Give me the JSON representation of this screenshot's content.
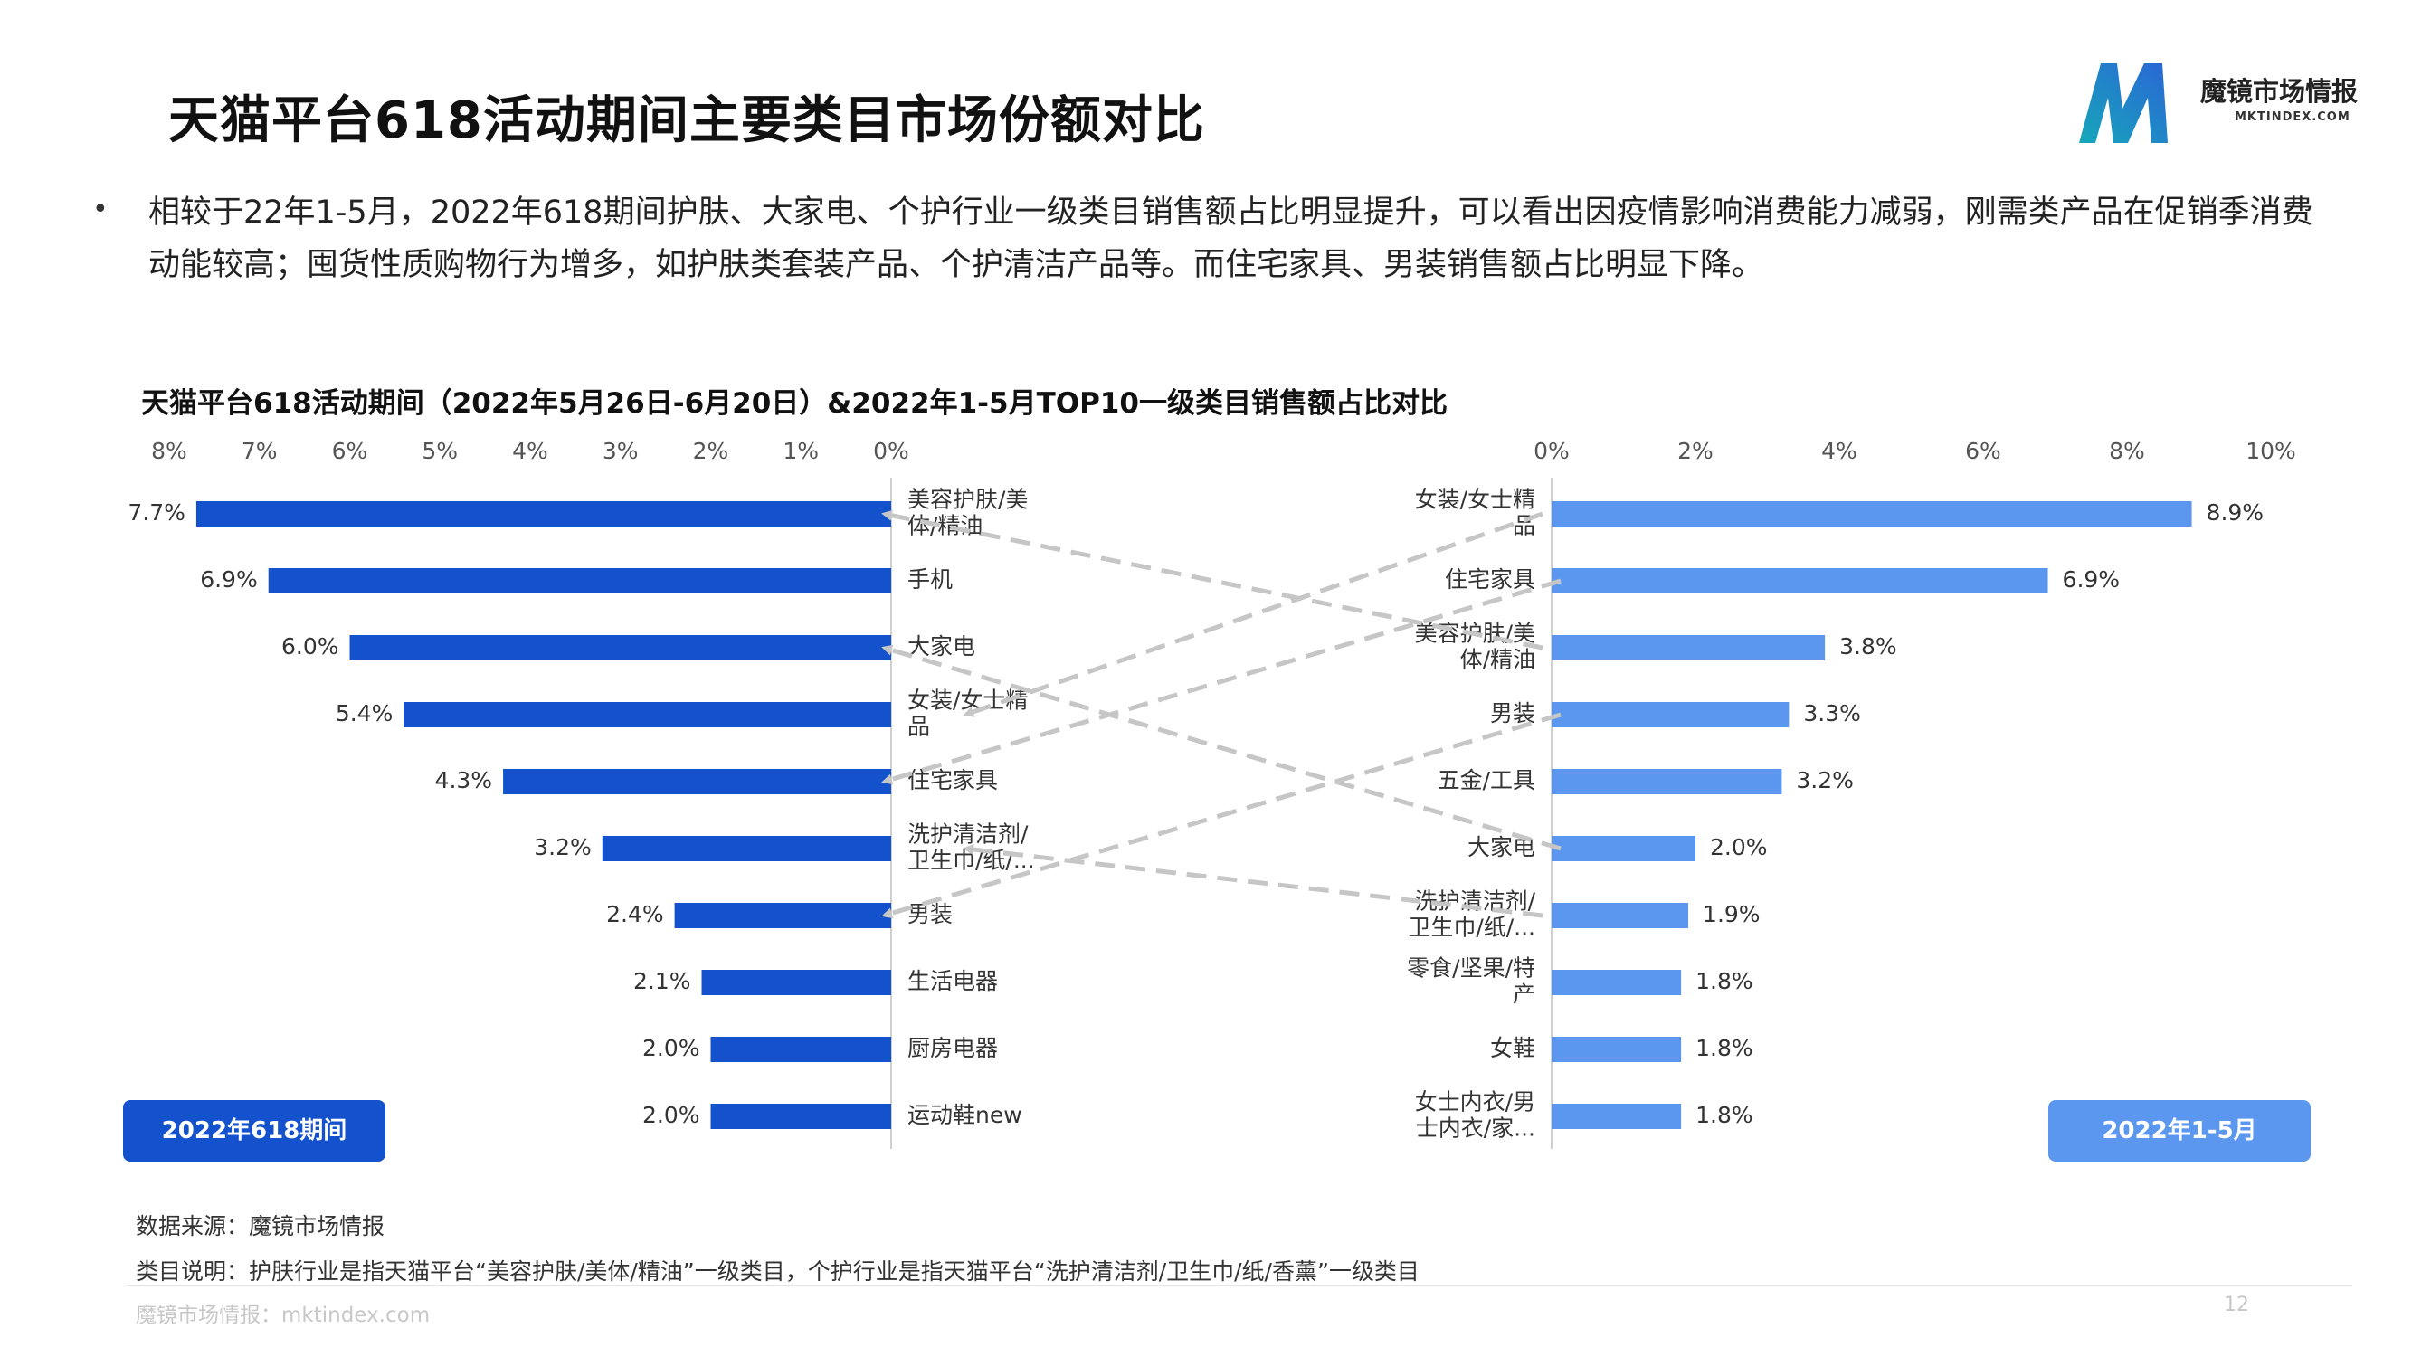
{
  "page": {
    "title": "天猫平台618活动期间主要类目市场份额对比",
    "bullet": "相较于22年1-5月，2022年618期间护肤、大家电、个护行业一级类目销售额占比明显提升，可以看出因疫情影响消费能力减弱，刚需类产品在促销季消费动能较高；囤货性质购物行为增多，如护肤类套装产品、个护清洁产品等。而住宅家具、男装销售额占比明显下降。",
    "bullet_marker": "•",
    "logo_name": "魔镜市场情报",
    "logo_sub": "MKTINDEX.COM",
    "legend_left": "2022年618期间",
    "legend_right": "2022年1-5月",
    "note_source": "数据来源：魔镜市场情报",
    "note_category": "类目说明：护肤行业是指天猫平台“美容护肤/美体/精油”一级类目，个护行业是指天猫平台“洗护清洁剂/卫生巾/纸/香薰”一级类目",
    "footer_source": "魔镜市场情报：mktindex.com",
    "page_number": "12"
  },
  "colors": {
    "left_bar": "#1451cc",
    "right_bar": "#5b97ee",
    "arrow": "#c6c6c6",
    "legend_left_bg": "#1451cc",
    "legend_right_bg": "#5b97ee"
  },
  "chart_data": {
    "type": "bar",
    "title": "天猫平台618活动期间（2022年5月26日-6月20日）&2022年1-5月TOP10一级类目销售额占比对比",
    "left": {
      "name": "2022年618期间",
      "orientation": "horizontal-reversed",
      "categories": [
        "美容护肤/美\n体/精油",
        "手机",
        "大家电",
        "女装/女士精\n品",
        "住宅家具",
        "洗护清洁剂/\n卫生巾/纸/...",
        "男装",
        "生活电器",
        "厨房电器",
        "运动鞋new"
      ],
      "values": [
        7.7,
        6.9,
        6.0,
        5.4,
        4.3,
        3.2,
        2.4,
        2.1,
        2.0,
        2.0
      ],
      "labels": [
        "7.7%",
        "6.9%",
        "6.0%",
        "5.4%",
        "4.3%",
        "3.2%",
        "2.4%",
        "2.1%",
        "2.0%",
        "2.0%"
      ],
      "xlim": [
        0,
        8
      ],
      "ticks": [
        "8%",
        "7%",
        "6%",
        "5%",
        "4%",
        "3%",
        "2%",
        "1%",
        "0%"
      ]
    },
    "right": {
      "name": "2022年1-5月",
      "orientation": "horizontal",
      "categories": [
        "女装/女士精\n品",
        "住宅家具",
        "美容护肤/美\n体/精油",
        "男装",
        "五金/工具",
        "大家电",
        "洗护清洁剂/\n卫生巾/纸/...",
        "零食/坚果/特\n产",
        "女鞋",
        "女士内衣/男\n士内衣/家..."
      ],
      "values": [
        8.9,
        6.9,
        3.8,
        3.3,
        3.2,
        2.0,
        1.9,
        1.8,
        1.8,
        1.8
      ],
      "labels": [
        "8.9%",
        "6.9%",
        "3.8%",
        "3.3%",
        "3.2%",
        "2.0%",
        "1.9%",
        "1.8%",
        "1.8%",
        "1.8%"
      ],
      "xlim": [
        0,
        10
      ],
      "ticks": [
        "0%",
        "2%",
        "4%",
        "6%",
        "8%",
        "10%"
      ]
    },
    "rank_changes": [
      {
        "from_right_rank": 1,
        "to_left_rank": 4
      },
      {
        "from_right_rank": 2,
        "to_left_rank": 5
      },
      {
        "from_right_rank": 3,
        "to_left_rank": 1
      },
      {
        "from_right_rank": 4,
        "to_left_rank": 7
      },
      {
        "from_right_rank": 6,
        "to_left_rank": 3
      },
      {
        "from_right_rank": 7,
        "to_left_rank": 6
      }
    ]
  }
}
